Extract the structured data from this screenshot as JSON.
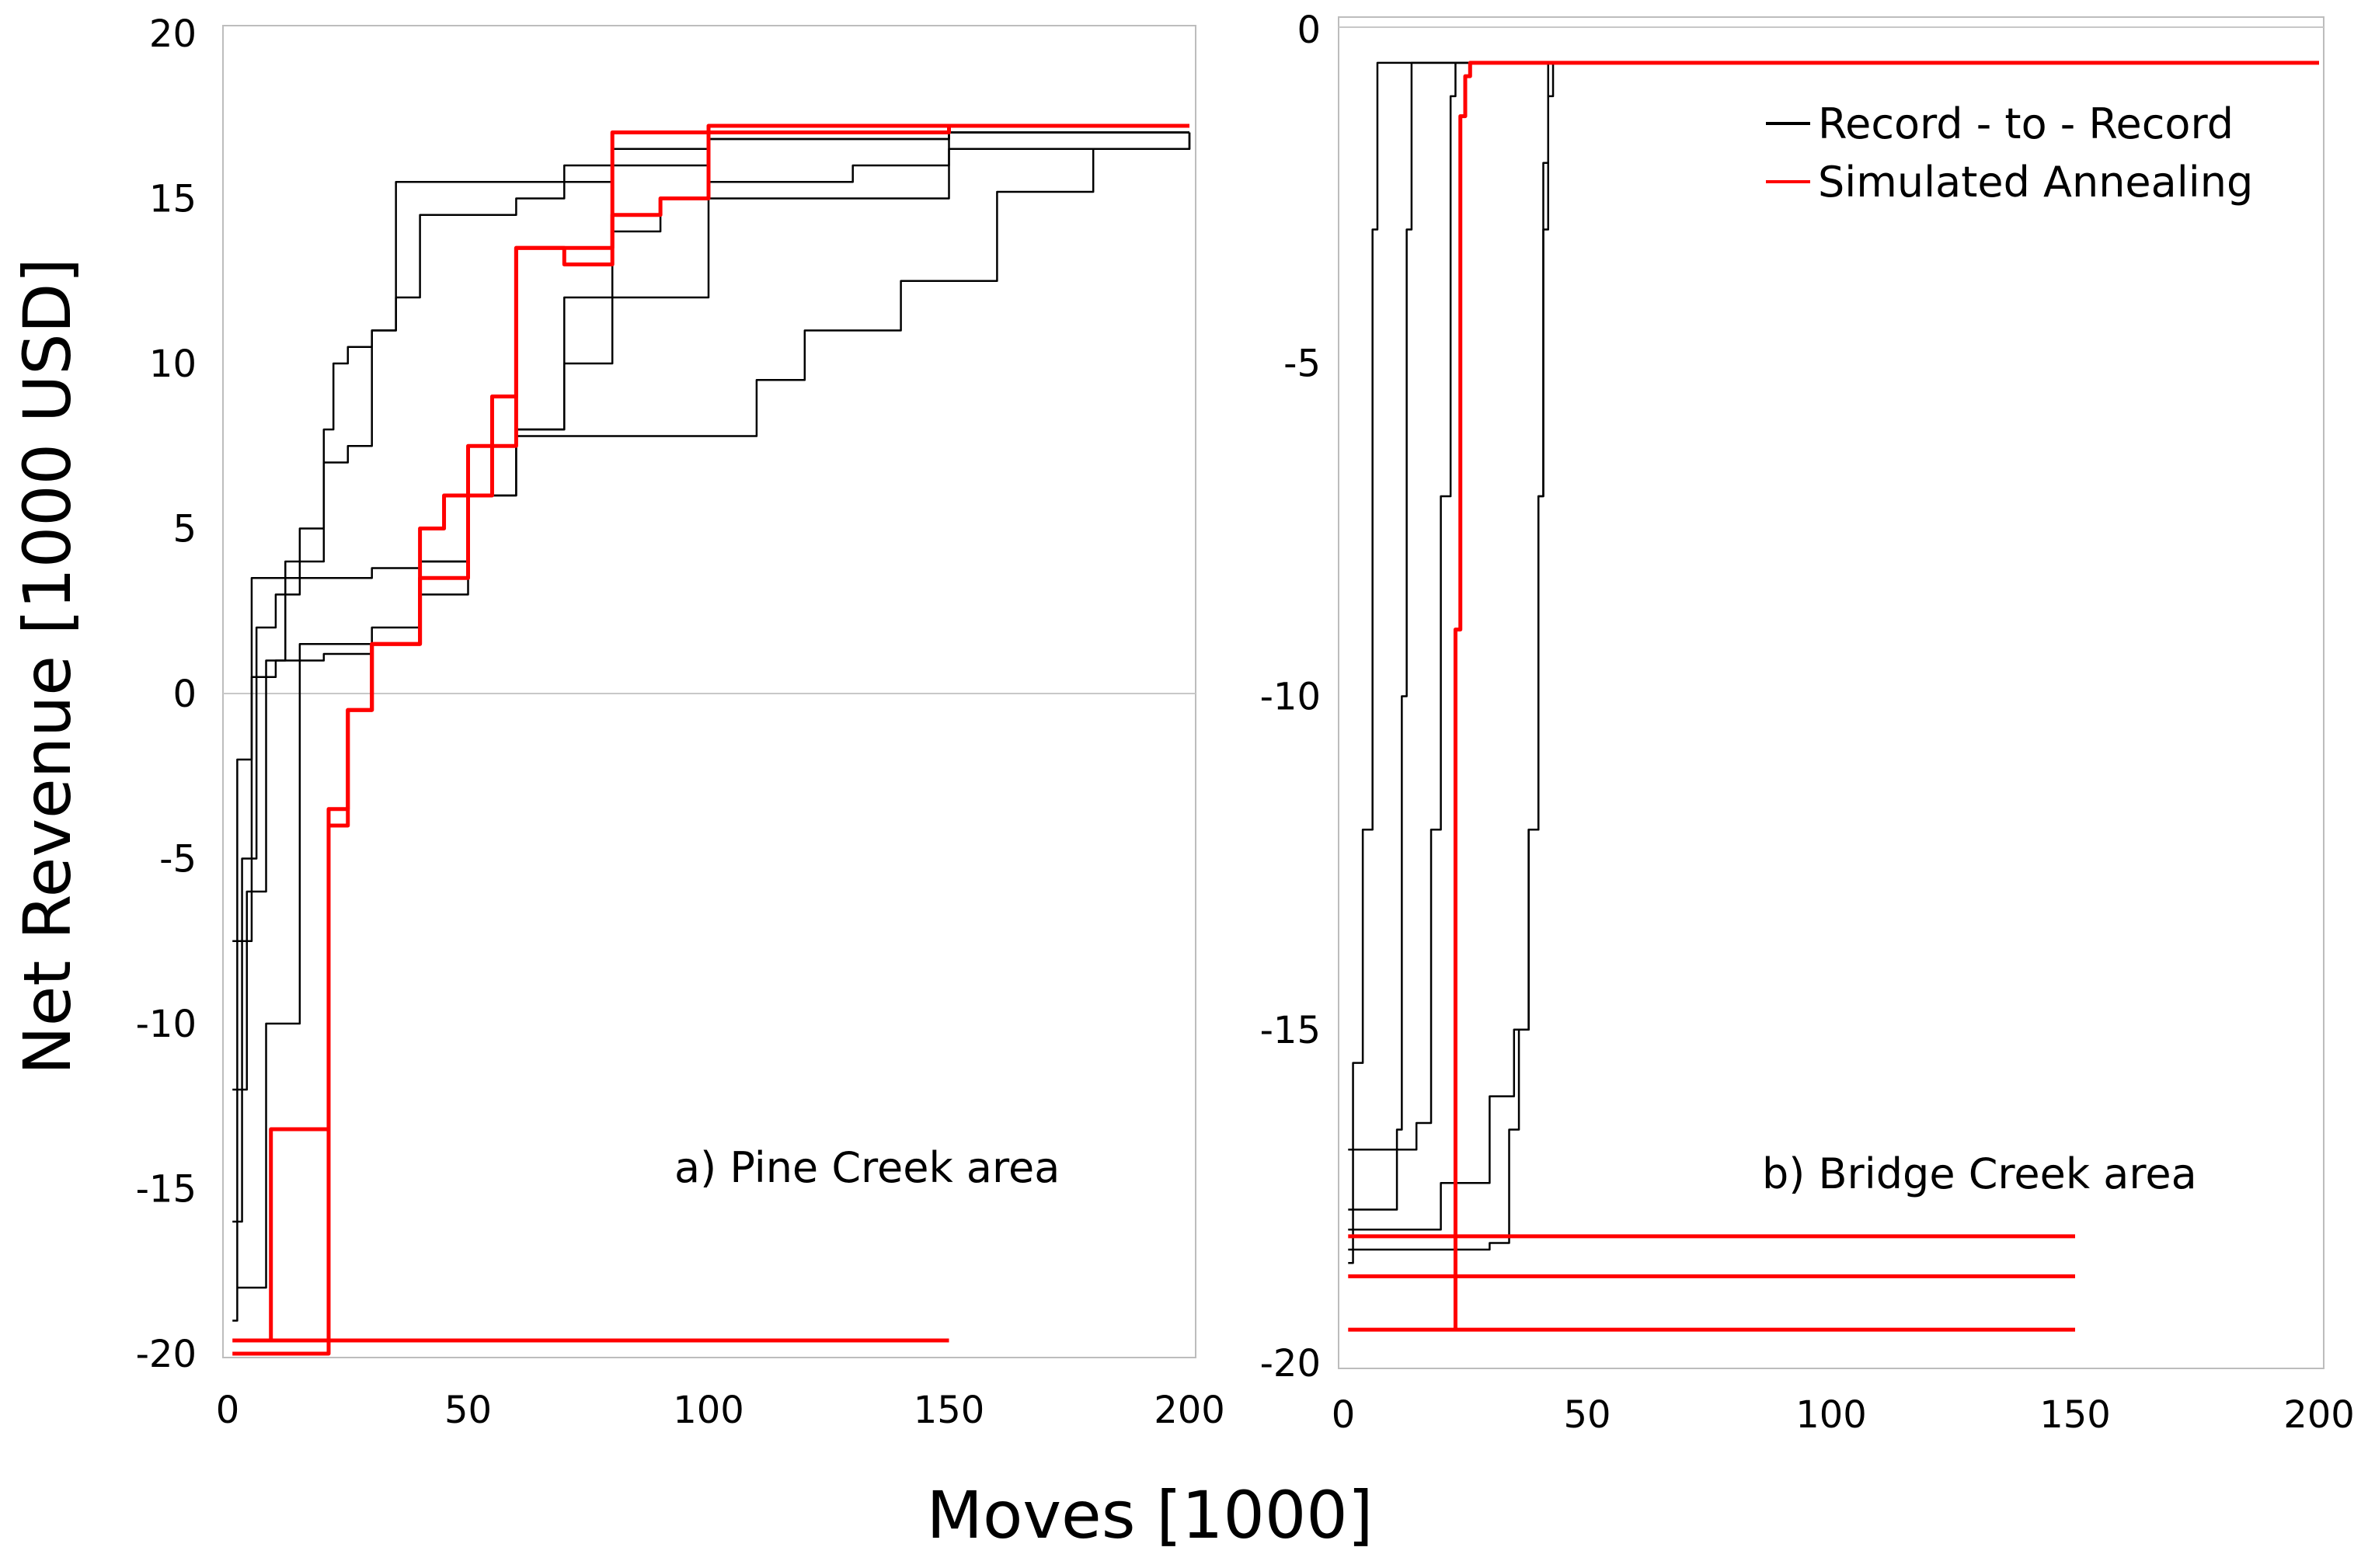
{
  "figure": {
    "ylabel": "Net Revenue [1000 USD]",
    "xlabel": "Moves [1000]"
  },
  "colors": {
    "record_to_record": "#000000",
    "simulated_annealing": "#ff0000",
    "frame": "#bdbdbd",
    "zero_line": "#c8c8c8"
  },
  "chart_data": [
    {
      "type": "line",
      "annotation": "a) Pine Creek area",
      "xlim": [
        0,
        200
      ],
      "ylim": [
        -20,
        20
      ],
      "xticks": [
        "0",
        "50",
        "100",
        "150",
        "200"
      ],
      "yticks": [
        "20",
        "15",
        "10",
        "5",
        "0",
        "-5",
        "-10",
        "-15",
        "-20"
      ],
      "series": [
        {
          "name": "Record - to - Record",
          "x": [
            1,
            2,
            5,
            10,
            15,
            20,
            25,
            30,
            40,
            50,
            60,
            70,
            80,
            100,
            150,
            200
          ],
          "y": [
            -19,
            -2,
            3.5,
            3.5,
            3.5,
            3.5,
            3.5,
            3.8,
            4,
            6,
            8,
            10,
            12,
            15,
            17,
            17
          ]
        },
        {
          "name": "Record - to - Record",
          "x": [
            1,
            3,
            6,
            10,
            15,
            20,
            22,
            25,
            30,
            35,
            50,
            60,
            70,
            80,
            100,
            150,
            200
          ],
          "y": [
            -16,
            -5,
            2,
            3,
            4,
            8,
            10,
            10.5,
            11,
            15.5,
            15.5,
            15.5,
            16,
            16.5,
            16.8,
            17,
            17
          ]
        },
        {
          "name": "Record - to - Record",
          "x": [
            1,
            4,
            8,
            12,
            15,
            20,
            25,
            30,
            35,
            40,
            50,
            60,
            70,
            80,
            100,
            150,
            200
          ],
          "y": [
            -12,
            -6,
            1,
            4,
            5,
            7,
            7.5,
            11,
            12,
            14.5,
            14.5,
            15,
            15.5,
            16,
            16.8,
            17,
            17
          ]
        },
        {
          "name": "Record - to - Record",
          "x": [
            1,
            5,
            10,
            20,
            30,
            40,
            50,
            60,
            70,
            80,
            90,
            100,
            130,
            150,
            200
          ],
          "y": [
            -7.5,
            0.5,
            1,
            1.2,
            1.5,
            3,
            6,
            8,
            12,
            14,
            15,
            15.5,
            16,
            16.5,
            17
          ]
        },
        {
          "name": "Record - to - Record",
          "x": [
            2,
            8,
            15,
            20,
            30,
            40,
            50,
            60,
            70,
            80,
            90,
            100,
            110,
            120,
            140,
            160,
            180,
            200
          ],
          "y": [
            -18,
            -10,
            1.5,
            1.5,
            2,
            4,
            7.5,
            7.8,
            7.8,
            7.8,
            7.8,
            7.8,
            9.5,
            11,
            12.5,
            15.2,
            16.5,
            17
          ]
        },
        {
          "name": "Simulated Annealing",
          "x": [
            1,
            150
          ],
          "y": [
            -19.6,
            -19.6
          ]
        },
        {
          "name": "Simulated Annealing",
          "x": [
            1,
            20,
            21,
            25,
            30,
            40,
            50,
            60,
            70,
            80,
            90,
            100,
            150,
            200
          ],
          "y": [
            -20,
            -20,
            -4,
            -0.5,
            1.5,
            3.5,
            7.5,
            13.5,
            13.5,
            17,
            17,
            17.2,
            17.2,
            17.2
          ]
        },
        {
          "name": "Simulated Annealing",
          "x": [
            8,
            9,
            20,
            21,
            25,
            30,
            40,
            45,
            55,
            60,
            70,
            80,
            90,
            100,
            150,
            200
          ],
          "y": [
            -19.6,
            -13.2,
            -13.2,
            -3.5,
            -0.5,
            1.5,
            5,
            6,
            9,
            13.5,
            13,
            14.5,
            15,
            17,
            17.2,
            17.2
          ]
        }
      ]
    },
    {
      "type": "line",
      "annotation": "b) Bridge Creek area",
      "xlim": [
        0,
        200
      ],
      "ylim": [
        -20,
        0
      ],
      "xticks": [
        "0",
        "50",
        "100",
        "150",
        "200"
      ],
      "yticks": [
        "0",
        "-5",
        "-10",
        "-15",
        "-20"
      ],
      "legend_position": "top-right",
      "legend": [
        {
          "label": "Record - to - Record",
          "series": "record_to_record"
        },
        {
          "label": "Simulated Annealing",
          "series": "simulated_annealing"
        }
      ],
      "series": [
        {
          "name": "Record - to - Record",
          "x": [
            1,
            2,
            4,
            6,
            7,
            200
          ],
          "y": [
            -18.5,
            -15.5,
            -12,
            -3,
            -0.5,
            -0.5
          ]
        },
        {
          "name": "Record - to - Record",
          "x": [
            1,
            10,
            11,
            12,
            13,
            14,
            200
          ],
          "y": [
            -17.7,
            -17.7,
            -16.5,
            -10,
            -3,
            -0.5,
            -0.5
          ]
        },
        {
          "name": "Record - to - Record",
          "x": [
            1,
            15,
            16,
            18,
            20,
            22,
            23,
            200
          ],
          "y": [
            -16.8,
            -16.4,
            -16.4,
            -12,
            -7,
            -1,
            -0.5,
            -0.5
          ]
        },
        {
          "name": "Record - to - Record",
          "x": [
            1,
            20,
            25,
            30,
            35,
            38,
            40,
            41,
            42,
            200
          ],
          "y": [
            -18,
            -17.3,
            -17.3,
            -16,
            -15,
            -12,
            -7,
            -2,
            -0.5,
            -0.5
          ]
        },
        {
          "name": "Record - to - Record",
          "x": [
            1,
            30,
            34,
            36,
            38,
            40,
            41,
            42,
            43,
            200
          ],
          "y": [
            -18.3,
            -18.2,
            -16.5,
            -15,
            -12,
            -7,
            -3,
            -1,
            -0.5,
            -0.5
          ]
        },
        {
          "name": "Simulated Annealing",
          "x": [
            1,
            150
          ],
          "y": [
            -18.1,
            -18.1
          ]
        },
        {
          "name": "Simulated Annealing",
          "x": [
            1,
            150
          ],
          "y": [
            -18.7,
            -18.7
          ]
        },
        {
          "name": "Simulated Annealing",
          "x": [
            1,
            150
          ],
          "y": [
            -19.5,
            -19.5
          ]
        },
        {
          "name": "Simulated Annealing",
          "x": [
            23,
            23,
            24,
            25,
            26,
            200
          ],
          "y": [
            -19.5,
            -9,
            -1.3,
            -0.7,
            -0.5,
            -0.5
          ]
        }
      ]
    }
  ]
}
